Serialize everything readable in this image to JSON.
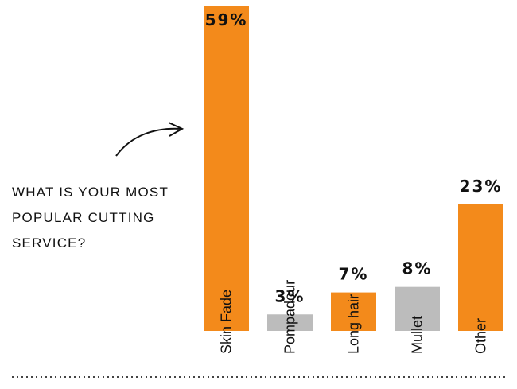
{
  "chart_data": {
    "type": "bar",
    "annotation": "WHAT IS YOUR MOST POPULAR CUTTING SERVICE?",
    "categories": [
      "Skin Fade",
      "Pompadour",
      "Long hair",
      "Mullet",
      "Other"
    ],
    "values": [
      59,
      3,
      7,
      8,
      23
    ],
    "value_labels": [
      "59%",
      "3%",
      "7%",
      "8%",
      "23%"
    ],
    "colors": [
      "#f38a1b",
      "#bcbcbc",
      "#f38a1b",
      "#bcbcbc",
      "#f38a1b"
    ]
  }
}
